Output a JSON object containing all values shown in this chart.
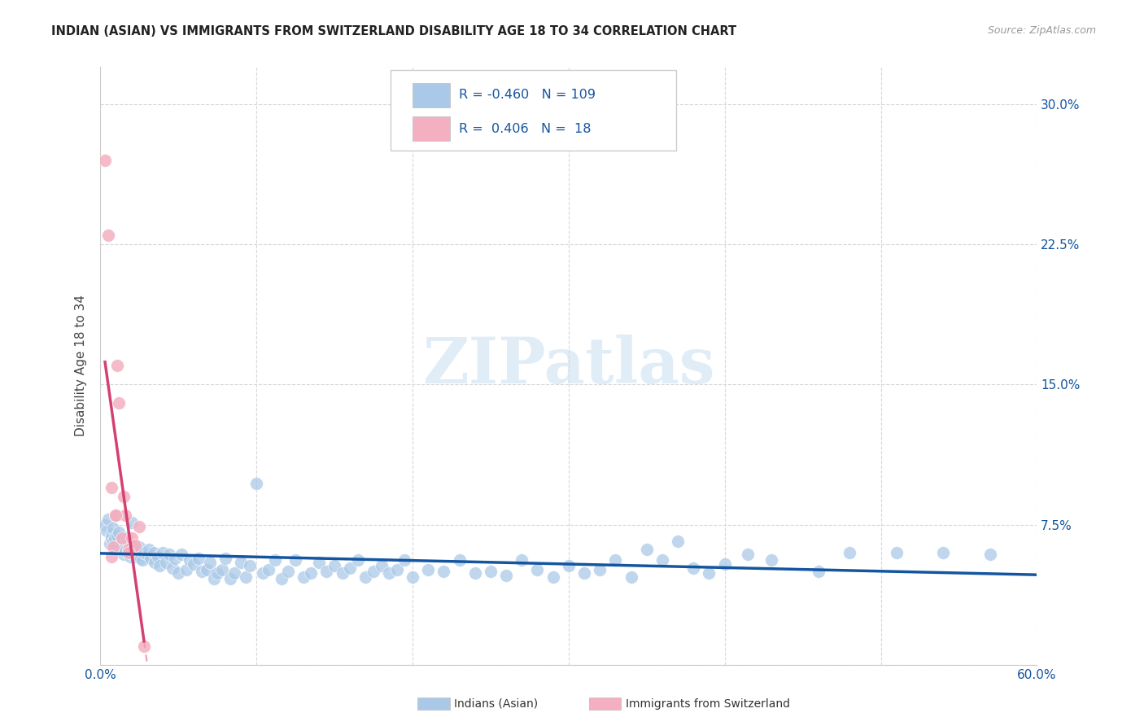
{
  "title": "INDIAN (ASIAN) VS IMMIGRANTS FROM SWITZERLAND DISABILITY AGE 18 TO 34 CORRELATION CHART",
  "source": "Source: ZipAtlas.com",
  "ylabel": "Disability Age 18 to 34",
  "xlim": [
    0.0,
    0.6
  ],
  "ylim": [
    0.0,
    0.32
  ],
  "yticks": [
    0.0,
    0.075,
    0.15,
    0.225,
    0.3
  ],
  "ytick_labels": [
    "",
    "7.5%",
    "15.0%",
    "22.5%",
    "30.0%"
  ],
  "xticks": [
    0.0,
    0.1,
    0.2,
    0.3,
    0.4,
    0.5,
    0.6
  ],
  "xtick_labels": [
    "0.0%",
    "",
    "",
    "",
    "",
    "",
    "60.0%"
  ],
  "blue_R": -0.46,
  "blue_N": 109,
  "pink_R": 0.406,
  "pink_N": 18,
  "blue_color": "#aac9e8",
  "pink_color": "#f4afc0",
  "blue_line_color": "#1455a0",
  "pink_line_color": "#d44070",
  "pink_dash_color": "#e8a0b8",
  "tick_label_color": "#1455a0",
  "watermark_color": "#c8ddf0",
  "watermark": "ZIPatlas",
  "legend_label_blue": "Indians (Asian)",
  "legend_label_pink": "Immigrants from Switzerland",
  "blue_scatter_x": [
    0.003,
    0.004,
    0.005,
    0.006,
    0.007,
    0.007,
    0.008,
    0.008,
    0.009,
    0.01,
    0.01,
    0.011,
    0.012,
    0.013,
    0.014,
    0.015,
    0.015,
    0.016,
    0.017,
    0.018,
    0.019,
    0.02,
    0.021,
    0.022,
    0.023,
    0.024,
    0.025,
    0.026,
    0.027,
    0.028,
    0.03,
    0.031,
    0.032,
    0.034,
    0.035,
    0.037,
    0.038,
    0.04,
    0.042,
    0.044,
    0.046,
    0.048,
    0.05,
    0.052,
    0.055,
    0.057,
    0.06,
    0.063,
    0.065,
    0.068,
    0.07,
    0.073,
    0.075,
    0.078,
    0.08,
    0.083,
    0.086,
    0.09,
    0.093,
    0.096,
    0.1,
    0.104,
    0.108,
    0.112,
    0.116,
    0.12,
    0.125,
    0.13,
    0.135,
    0.14,
    0.145,
    0.15,
    0.155,
    0.16,
    0.165,
    0.17,
    0.175,
    0.18,
    0.185,
    0.19,
    0.195,
    0.2,
    0.21,
    0.22,
    0.23,
    0.24,
    0.25,
    0.26,
    0.27,
    0.28,
    0.29,
    0.3,
    0.31,
    0.32,
    0.33,
    0.34,
    0.35,
    0.36,
    0.37,
    0.38,
    0.39,
    0.4,
    0.415,
    0.43,
    0.46,
    0.48,
    0.51,
    0.54,
    0.57
  ],
  "blue_scatter_y": [
    0.075,
    0.072,
    0.078,
    0.065,
    0.07,
    0.068,
    0.073,
    0.066,
    0.068,
    0.08,
    0.063,
    0.069,
    0.071,
    0.064,
    0.067,
    0.062,
    0.059,
    0.061,
    0.068,
    0.065,
    0.058,
    0.076,
    0.06,
    0.058,
    0.059,
    0.062,
    0.063,
    0.057,
    0.056,
    0.06,
    0.059,
    0.062,
    0.057,
    0.06,
    0.055,
    0.058,
    0.053,
    0.06,
    0.055,
    0.059,
    0.052,
    0.057,
    0.049,
    0.059,
    0.051,
    0.056,
    0.054,
    0.057,
    0.05,
    0.051,
    0.055,
    0.046,
    0.049,
    0.051,
    0.057,
    0.046,
    0.049,
    0.055,
    0.047,
    0.053,
    0.097,
    0.049,
    0.051,
    0.056,
    0.046,
    0.05,
    0.056,
    0.047,
    0.049,
    0.055,
    0.05,
    0.053,
    0.049,
    0.052,
    0.056,
    0.047,
    0.05,
    0.053,
    0.049,
    0.051,
    0.056,
    0.047,
    0.051,
    0.05,
    0.056,
    0.049,
    0.05,
    0.048,
    0.056,
    0.051,
    0.047,
    0.053,
    0.049,
    0.051,
    0.056,
    0.047,
    0.062,
    0.056,
    0.066,
    0.052,
    0.049,
    0.054,
    0.059,
    0.056,
    0.05,
    0.06,
    0.06,
    0.06,
    0.059
  ],
  "pink_scatter_x": [
    0.003,
    0.005,
    0.007,
    0.008,
    0.01,
    0.011,
    0.012,
    0.014,
    0.015,
    0.016,
    0.018,
    0.02,
    0.022,
    0.025,
    0.028,
    0.01,
    0.018,
    0.007
  ],
  "pink_scatter_y": [
    0.27,
    0.23,
    0.095,
    0.063,
    0.08,
    0.16,
    0.14,
    0.068,
    0.09,
    0.08,
    0.062,
    0.068,
    0.064,
    0.074,
    0.01,
    0.08,
    0.06,
    0.058
  ]
}
